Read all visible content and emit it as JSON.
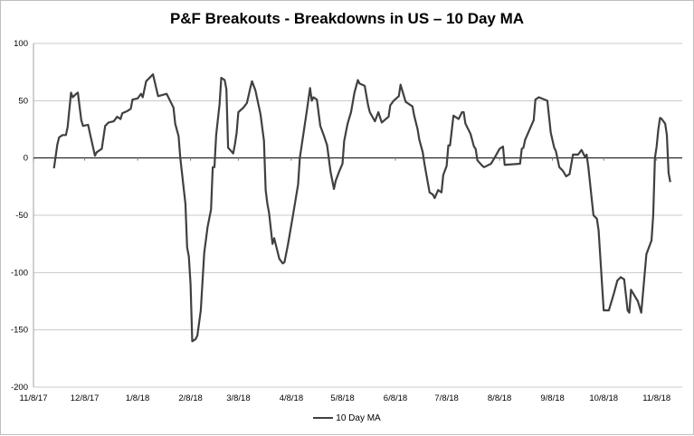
{
  "chart_data": {
    "type": "line",
    "title": "P&F Breakouts - Breakdowns in US – 10 Day MA",
    "xlabel": "",
    "ylabel": "",
    "x_units": "days since 11/8/17",
    "xlim": [
      0,
      380
    ],
    "ylim": [
      -200,
      100
    ],
    "y_ticks": [
      100,
      50,
      0,
      -50,
      -100,
      -150,
      -200
    ],
    "x_ticks": [
      {
        "label": "11/8/17",
        "day": 0
      },
      {
        "label": "12/8/17",
        "day": 30
      },
      {
        "label": "1/8/18",
        "day": 61
      },
      {
        "label": "2/8/18",
        "day": 92
      },
      {
        "label": "3/8/18",
        "day": 120
      },
      {
        "label": "4/8/18",
        "day": 151
      },
      {
        "label": "5/8/18",
        "day": 181
      },
      {
        "label": "6/8/18",
        "day": 212
      },
      {
        "label": "7/8/18",
        "day": 242
      },
      {
        "label": "8/8/18",
        "day": 273
      },
      {
        "label": "9/8/18",
        "day": 304
      },
      {
        "label": "10/8/18",
        "day": 334
      },
      {
        "label": "11/8/18",
        "day": 365
      }
    ],
    "grid": true,
    "legend_position": "bottom",
    "line_color": "#404040",
    "series": [
      {
        "name": "10 Day MA",
        "points": [
          [
            12,
            -9
          ],
          [
            14,
            12
          ],
          [
            15,
            18
          ],
          [
            17,
            20
          ],
          [
            19,
            20
          ],
          [
            20,
            27
          ],
          [
            22,
            57
          ],
          [
            23,
            53
          ],
          [
            25,
            56
          ],
          [
            26,
            57
          ],
          [
            28,
            33
          ],
          [
            29,
            28
          ],
          [
            32,
            29
          ],
          [
            33,
            22
          ],
          [
            36,
            2
          ],
          [
            37,
            5
          ],
          [
            40,
            8
          ],
          [
            42,
            28
          ],
          [
            44,
            31
          ],
          [
            47,
            32
          ],
          [
            49,
            36
          ],
          [
            51,
            34
          ],
          [
            52,
            39
          ],
          [
            55,
            41
          ],
          [
            57,
            43
          ],
          [
            58,
            51
          ],
          [
            61,
            52
          ],
          [
            63,
            56
          ],
          [
            64,
            53
          ],
          [
            66,
            67
          ],
          [
            70,
            73
          ],
          [
            73,
            54
          ],
          [
            78,
            56
          ],
          [
            82,
            44
          ],
          [
            83,
            30
          ],
          [
            85,
            19
          ],
          [
            86,
            0
          ],
          [
            89,
            -40
          ],
          [
            90,
            -78
          ],
          [
            91,
            -86
          ],
          [
            92,
            -110
          ],
          [
            93,
            -160
          ],
          [
            95,
            -158
          ],
          [
            96,
            -155
          ],
          [
            98,
            -133
          ],
          [
            100,
            -83
          ],
          [
            102,
            -60
          ],
          [
            104,
            -45
          ],
          [
            105,
            -8
          ],
          [
            106,
            -8
          ],
          [
            107,
            20
          ],
          [
            109,
            47
          ],
          [
            110,
            70
          ],
          [
            112,
            68
          ],
          [
            113,
            60
          ],
          [
            114,
            9
          ],
          [
            117,
            4
          ],
          [
            118,
            12
          ],
          [
            119,
            22
          ],
          [
            120,
            40
          ],
          [
            123,
            44
          ],
          [
            125,
            48
          ],
          [
            127,
            61
          ],
          [
            128,
            67
          ],
          [
            130,
            59
          ],
          [
            131,
            52
          ],
          [
            133,
            38
          ],
          [
            135,
            15
          ],
          [
            136,
            -28
          ],
          [
            137,
            -40
          ],
          [
            138,
            -48
          ],
          [
            140,
            -75
          ],
          [
            141,
            -70
          ],
          [
            144,
            -88
          ],
          [
            146,
            -92
          ],
          [
            147,
            -91
          ],
          [
            149,
            -76
          ],
          [
            152,
            -50
          ],
          [
            155,
            -23
          ],
          [
            156,
            0
          ],
          [
            158,
            20
          ],
          [
            160,
            40
          ],
          [
            162,
            61
          ],
          [
            163,
            50
          ],
          [
            164,
            53
          ],
          [
            166,
            51
          ],
          [
            168,
            28
          ],
          [
            170,
            20
          ],
          [
            172,
            11
          ],
          [
            174,
            -12
          ],
          [
            176,
            -27
          ],
          [
            177,
            -20
          ],
          [
            179,
            -12
          ],
          [
            181,
            -5
          ],
          [
            182,
            15
          ],
          [
            184,
            30
          ],
          [
            186,
            40
          ],
          [
            188,
            57
          ],
          [
            190,
            68
          ],
          [
            191,
            65
          ],
          [
            194,
            63
          ],
          [
            196,
            46
          ],
          [
            197,
            40
          ],
          [
            200,
            32
          ],
          [
            202,
            40
          ],
          [
            204,
            31
          ],
          [
            208,
            36
          ],
          [
            209,
            46
          ],
          [
            211,
            50
          ],
          [
            214,
            54
          ],
          [
            215,
            64
          ],
          [
            216,
            59
          ],
          [
            218,
            49
          ],
          [
            222,
            45
          ],
          [
            223,
            37
          ],
          [
            225,
            25
          ],
          [
            226,
            16
          ],
          [
            228,
            5
          ],
          [
            229,
            -5
          ],
          [
            232,
            -30
          ],
          [
            234,
            -32
          ],
          [
            235,
            -35
          ],
          [
            237,
            -28
          ],
          [
            239,
            -30
          ],
          [
            240,
            -15
          ],
          [
            242,
            -7
          ],
          [
            243,
            11
          ],
          [
            244,
            11
          ],
          [
            246,
            37
          ],
          [
            249,
            34
          ],
          [
            251,
            40
          ],
          [
            252,
            40
          ],
          [
            253,
            30
          ],
          [
            256,
            21
          ],
          [
            258,
            10
          ],
          [
            259,
            8
          ],
          [
            260,
            -2
          ],
          [
            263,
            -7
          ],
          [
            264,
            -8
          ],
          [
            268,
            -5
          ],
          [
            270,
            0
          ],
          [
            273,
            8
          ],
          [
            275,
            10
          ],
          [
            276,
            -6
          ],
          [
            285,
            -5
          ],
          [
            286,
            8
          ],
          [
            287,
            9
          ],
          [
            288,
            16
          ],
          [
            293,
            33
          ],
          [
            294,
            51
          ],
          [
            296,
            53
          ],
          [
            301,
            50
          ],
          [
            303,
            22
          ],
          [
            305,
            9
          ],
          [
            306,
            6
          ],
          [
            308,
            -8
          ],
          [
            310,
            -11
          ],
          [
            312,
            -16
          ],
          [
            314,
            -14
          ],
          [
            316,
            3
          ],
          [
            319,
            3
          ],
          [
            321,
            7
          ],
          [
            323,
            1
          ],
          [
            324,
            3
          ],
          [
            325,
            -8
          ],
          [
            328,
            -50
          ],
          [
            330,
            -53
          ],
          [
            331,
            -63
          ],
          [
            334,
            -133
          ],
          [
            337,
            -133
          ],
          [
            340,
            -118
          ],
          [
            342,
            -107
          ],
          [
            344,
            -104
          ],
          [
            346,
            -106
          ],
          [
            348,
            -133
          ],
          [
            349,
            -135
          ],
          [
            350,
            -115
          ],
          [
            354,
            -125
          ],
          [
            356,
            -135
          ],
          [
            359,
            -84
          ],
          [
            362,
            -72
          ],
          [
            363,
            -50
          ],
          [
            364,
            0
          ],
          [
            365,
            10
          ],
          [
            366,
            25
          ],
          [
            367,
            35
          ],
          [
            368,
            34
          ],
          [
            370,
            30
          ],
          [
            371,
            20
          ],
          [
            372,
            -13
          ],
          [
            373,
            -21
          ]
        ]
      }
    ]
  }
}
